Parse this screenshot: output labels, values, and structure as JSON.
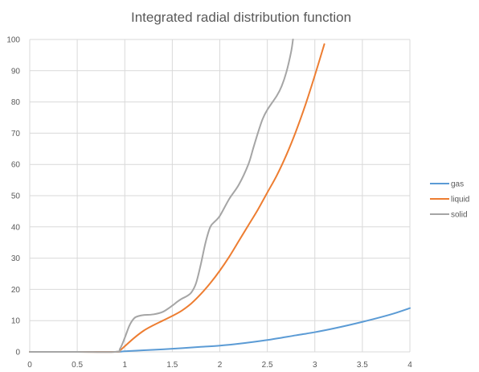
{
  "chart_data": {
    "type": "line",
    "title": "Integrated radial distribution function",
    "xlabel": "",
    "ylabel": "",
    "xlim": [
      0,
      4
    ],
    "ylim": [
      0,
      100
    ],
    "xticks": [
      0,
      0.5,
      1,
      1.5,
      2,
      2.5,
      3,
      3.5,
      4
    ],
    "yticks": [
      0,
      10,
      20,
      30,
      40,
      50,
      60,
      70,
      80,
      90,
      100
    ],
    "grid": true,
    "legend": "right",
    "series": [
      {
        "name": "gas",
        "color": "#5b9bd5",
        "x": [
          0,
          0.5,
          0.9,
          1.0,
          1.2,
          1.5,
          1.8,
          2.0,
          2.2,
          2.5,
          2.8,
          3.0,
          3.2,
          3.5,
          3.8,
          4.0
        ],
        "y": [
          0,
          0,
          0,
          0.2,
          0.5,
          1.0,
          1.6,
          2.0,
          2.6,
          3.8,
          5.3,
          6.3,
          7.5,
          9.6,
          12.0,
          14.0
        ]
      },
      {
        "name": "liquid",
        "color": "#ed7d31",
        "x": [
          0,
          0.5,
          0.9,
          0.95,
          1.0,
          1.1,
          1.2,
          1.3,
          1.4,
          1.5,
          1.6,
          1.7,
          1.8,
          1.9,
          2.0,
          2.1,
          2.2,
          2.3,
          2.4,
          2.5,
          2.6,
          2.7,
          2.8,
          2.9,
          3.0,
          3.1
        ],
        "y": [
          0,
          0,
          0,
          0.5,
          1.8,
          4.5,
          6.8,
          8.5,
          10.0,
          11.5,
          13.2,
          15.5,
          18.5,
          22.0,
          26.0,
          30.5,
          35.5,
          40.5,
          45.5,
          51.0,
          56.5,
          63.0,
          70.5,
          79.0,
          88.5,
          98.5
        ]
      },
      {
        "name": "solid",
        "color": "#a5a5a5",
        "x": [
          0,
          0.5,
          0.9,
          0.95,
          1.0,
          1.05,
          1.1,
          1.15,
          1.2,
          1.3,
          1.4,
          1.5,
          1.55,
          1.6,
          1.65,
          1.7,
          1.75,
          1.8,
          1.85,
          1.9,
          1.95,
          2.0,
          2.1,
          2.2,
          2.3,
          2.35,
          2.4,
          2.45,
          2.5,
          2.6,
          2.65,
          2.7,
          2.75,
          2.77
        ],
        "y": [
          0,
          0,
          0,
          1.0,
          4.5,
          8.5,
          10.8,
          11.5,
          11.8,
          12.0,
          12.8,
          14.8,
          16.0,
          17.0,
          17.8,
          19.0,
          22.0,
          28.0,
          35.0,
          40.0,
          41.8,
          43.5,
          49.0,
          53.5,
          60.0,
          65.0,
          70.0,
          74.5,
          77.5,
          82.0,
          85.0,
          89.5,
          96.0,
          100.0
        ]
      }
    ]
  }
}
